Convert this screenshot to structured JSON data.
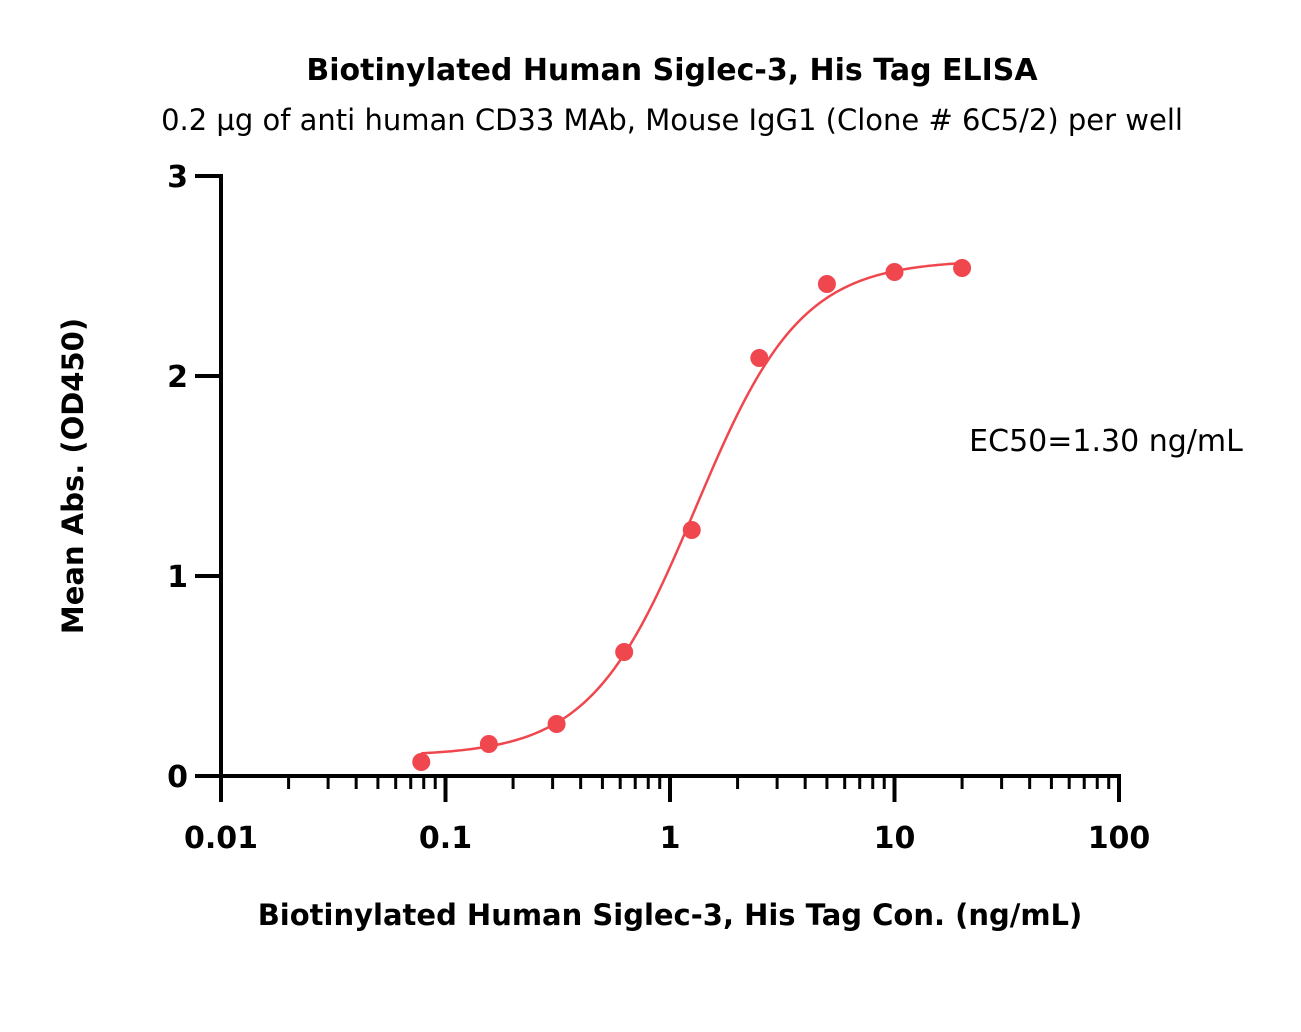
{
  "chart_data": {
    "type": "scatter",
    "title": "Biotinylated Human Siglec-3, His Tag ELISA",
    "subtitle": "0.2 µg of anti human CD33 MAb, Mouse IgG1 (Clone # 6C5/2) per well",
    "xlabel": "Biotinylated Human Siglec-3, His Tag Con. (ng/mL)",
    "ylabel": "Mean Abs. (OD450)",
    "xscale": "log",
    "xlim": [
      0.01,
      100
    ],
    "ylim": [
      0,
      3
    ],
    "x_ticks": [
      0.01,
      0.1,
      1,
      10,
      100
    ],
    "x_tick_labels": [
      "0.01",
      "0.1",
      "1",
      "10",
      "100"
    ],
    "y_ticks": [
      0,
      1,
      2,
      3
    ],
    "y_tick_labels": [
      "0",
      "1",
      "2",
      "3"
    ],
    "grid": false,
    "legend": "none",
    "color": "#f0474f",
    "series": [
      {
        "x": [
          0.078,
          0.156,
          0.3125,
          0.625,
          1.25,
          2.5,
          5,
          10,
          20
        ],
        "y": [
          0.07,
          0.16,
          0.26,
          0.62,
          1.23,
          2.09,
          2.46,
          2.52,
          2.54
        ]
      }
    ],
    "fit": {
      "model": "4PL",
      "bottom": 0.1,
      "top": 2.58,
      "ec50": 1.3,
      "hill": 1.85
    },
    "annotations": [
      {
        "text": "EC50=1.30 ng/mL"
      }
    ]
  }
}
